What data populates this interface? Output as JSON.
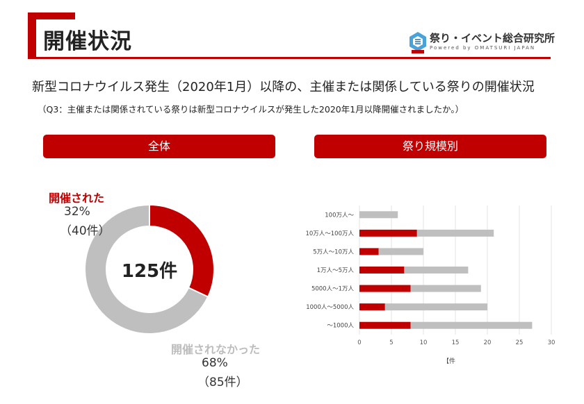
{
  "header": {
    "title": "開催状況",
    "logo_name": "祭り・イベント総合研究所",
    "logo_sub": "Powered by OMATSURI JAPAN"
  },
  "headline": "新型コロナウイルス発生（2020年1月）以降の、主催または関係している祭りの開催状況",
  "subnote": "（Q3：主催または関係されている祭りは新型コロナウイルスが発生した2020年1月以降開催されましたか。）",
  "panels": {
    "left_title": "全体",
    "right_title": "祭り規模別"
  },
  "colors": {
    "held": "#c00000",
    "not_held": "#bfbfbf",
    "accent": "#c00000"
  },
  "chart_data": [
    {
      "type": "pie",
      "variant": "donut",
      "center_label": "125件",
      "slices": [
        {
          "label": "開催された",
          "percent": "32%",
          "count": "（40件）",
          "value": 40
        },
        {
          "label": "開催されなかった",
          "percent": "68%",
          "count": "（85件）",
          "value": 85
        }
      ]
    },
    {
      "type": "bar",
      "orientation": "horizontal",
      "stacked": true,
      "categories": [
        "100万人～",
        "10万人～100万人",
        "5万人～10万人",
        "1万人～5万人",
        "5000人～1万人",
        "1000人～5000人",
        "～1000人"
      ],
      "series": [
        {
          "values": [
            0,
            9,
            3,
            7,
            8,
            4,
            8
          ]
        },
        {
          "values": [
            6,
            12,
            7,
            10,
            11,
            16,
            19
          ]
        }
      ],
      "xlim": [
        0,
        30
      ],
      "xticks": [
        "0",
        "5",
        "10",
        "15",
        "20",
        "25",
        "30"
      ],
      "xlabel": "【件",
      "grid": true
    }
  ]
}
